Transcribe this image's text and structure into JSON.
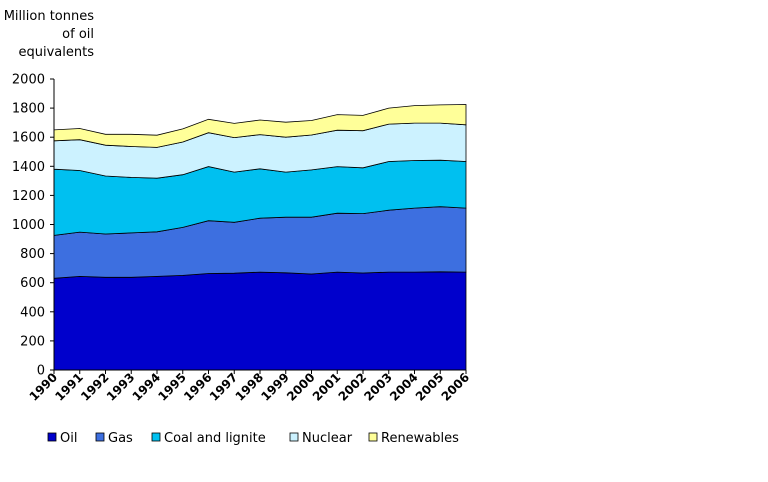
{
  "chart_data": {
    "type": "area",
    "stacked": true,
    "title": "",
    "ylabel_lines": [
      "Million tonnes",
      "of oil",
      "equivalents"
    ],
    "xlabel": "",
    "ylim": [
      0,
      2000
    ],
    "yticks": [
      "0",
      "200",
      "400",
      "600",
      "800",
      "1000",
      "1200",
      "1400",
      "1600",
      "1800",
      "2000"
    ],
    "categories": [
      "1990",
      "1991",
      "1992",
      "1993",
      "1994",
      "1995",
      "1996",
      "1997",
      "1998",
      "1999",
      "2000",
      "2001",
      "2002",
      "2003",
      "2004",
      "2005",
      "2006"
    ],
    "grid": false,
    "legend_position": "bottom",
    "series": [
      {
        "name": "Oil",
        "color": "#0000cc",
        "values": [
          630,
          643,
          637,
          637,
          643,
          650,
          663,
          665,
          673,
          668,
          660,
          673,
          667,
          673,
          673,
          675,
          673
        ]
      },
      {
        "name": "Gas",
        "color": "#3d6fe0",
        "values": [
          295,
          305,
          298,
          305,
          307,
          330,
          363,
          350,
          370,
          382,
          390,
          405,
          408,
          425,
          440,
          447,
          440
        ]
      },
      {
        "name": "Coal and lignite",
        "color": "#00c0f0",
        "values": [
          455,
          423,
          398,
          382,
          368,
          362,
          372,
          345,
          340,
          310,
          325,
          320,
          315,
          335,
          327,
          320,
          320
        ]
      },
      {
        "name": "Nuclear",
        "color": "#ccf2ff",
        "values": [
          195,
          212,
          212,
          212,
          212,
          225,
          233,
          237,
          235,
          240,
          240,
          250,
          255,
          257,
          257,
          255,
          252
        ]
      },
      {
        "name": "Renewables",
        "color": "#ffff99",
        "values": [
          75,
          77,
          75,
          84,
          84,
          90,
          92,
          98,
          100,
          103,
          100,
          107,
          105,
          110,
          120,
          125,
          140
        ]
      }
    ]
  }
}
